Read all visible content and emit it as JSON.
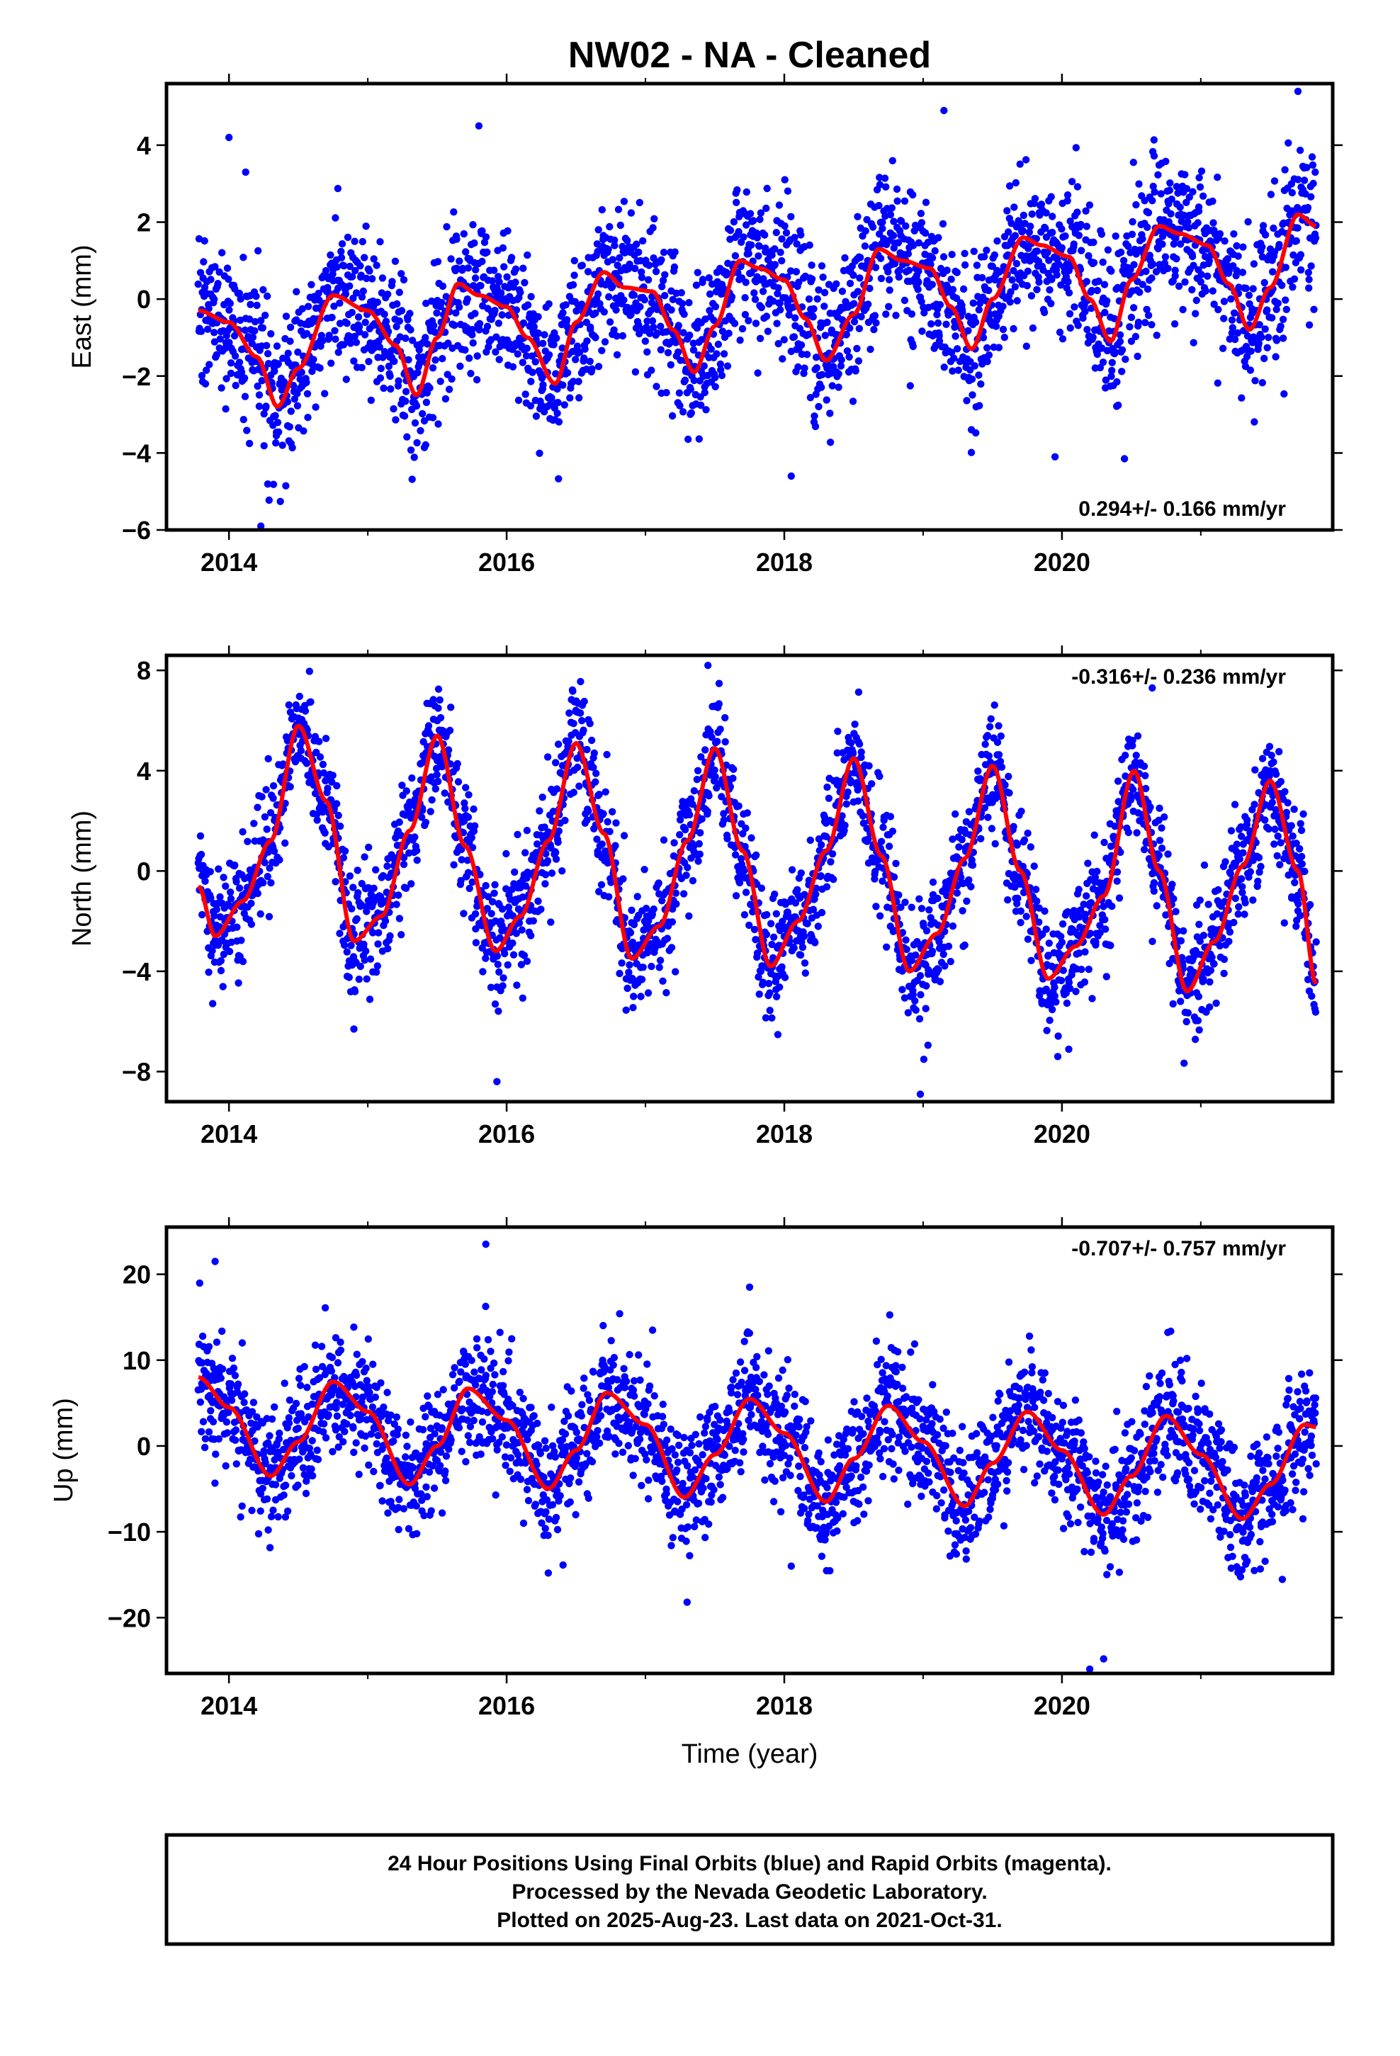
{
  "title": "NW02  - NA - Cleaned",
  "colors": {
    "points": "#0000ff",
    "fit": "#ff0000",
    "frame": "#000000"
  },
  "chart_data": [
    {
      "type": "scatter",
      "name": "east",
      "ylabel": "East (mm)",
      "xlabel": "",
      "xlim": [
        2013.55,
        2021.95
      ],
      "ylim": [
        -6,
        5.6
      ],
      "yticks": [
        -6,
        -4,
        -2,
        0,
        2,
        4
      ],
      "xticks": [
        2014,
        2016,
        2018,
        2020
      ],
      "rate_text": "0.294+/- 0.166 mm/yr",
      "rate_position": "bottom-right",
      "data_range": [
        2013.78,
        2021.83
      ],
      "fit": {
        "x": [
          2013.78,
          2014.0,
          2014.2,
          2014.35,
          2014.5,
          2014.75,
          2015.0,
          2015.2,
          2015.35,
          2015.5,
          2015.65,
          2015.8,
          2016.0,
          2016.15,
          2016.35,
          2016.5,
          2016.7,
          2016.85,
          2017.05,
          2017.2,
          2017.35,
          2017.5,
          2017.68,
          2017.82,
          2018.0,
          2018.15,
          2018.3,
          2018.5,
          2018.68,
          2018.85,
          2019.05,
          2019.2,
          2019.35,
          2019.5,
          2019.72,
          2019.85,
          2020.05,
          2020.2,
          2020.35,
          2020.5,
          2020.7,
          2020.85,
          2021.05,
          2021.2,
          2021.35,
          2021.5,
          2021.7,
          2021.83
        ],
        "y": [
          -0.3,
          -0.6,
          -1.5,
          -2.8,
          -1.8,
          0.1,
          -0.3,
          -1.2,
          -2.5,
          -1.0,
          0.4,
          0.1,
          -0.2,
          -1.0,
          -2.2,
          -0.6,
          0.7,
          0.3,
          0.2,
          -0.8,
          -1.9,
          -0.7,
          1.0,
          0.8,
          0.5,
          -0.5,
          -1.6,
          -0.4,
          1.3,
          1.0,
          0.8,
          -0.2,
          -1.3,
          0.0,
          1.6,
          1.4,
          1.1,
          0.0,
          -1.1,
          0.5,
          1.9,
          1.7,
          1.4,
          0.4,
          -0.8,
          0.3,
          2.2,
          1.9
        ]
      },
      "scatter_spread": 1.0,
      "outliers": [
        {
          "x": 2014.0,
          "y": 4.2
        },
        {
          "x": 2014.12,
          "y": 3.3
        },
        {
          "x": 2015.8,
          "y": 4.5
        },
        {
          "x": 2019.15,
          "y": 4.9
        },
        {
          "x": 2021.7,
          "y": 5.4
        },
        {
          "x": 2014.23,
          "y": -5.9
        },
        {
          "x": 2018.05,
          "y": -4.6
        },
        {
          "x": 2020.45,
          "y": -4.15
        },
        {
          "x": 2019.95,
          "y": -4.1
        }
      ]
    },
    {
      "type": "scatter",
      "name": "north",
      "ylabel": "North (mm)",
      "xlabel": "",
      "xlim": [
        2013.55,
        2021.95
      ],
      "ylim": [
        -9.2,
        8.6
      ],
      "yticks": [
        -8,
        -4,
        0,
        4,
        8
      ],
      "xticks": [
        2014,
        2016,
        2018,
        2020
      ],
      "rate_text": "-0.316+/- 0.236 mm/yr",
      "rate_position": "top-right",
      "data_range": [
        2013.78,
        2021.83
      ],
      "fit": {
        "x": [
          2013.78,
          2013.9,
          2014.1,
          2014.3,
          2014.5,
          2014.7,
          2014.9,
          2015.1,
          2015.3,
          2015.5,
          2015.7,
          2015.92,
          2016.1,
          2016.3,
          2016.5,
          2016.7,
          2016.9,
          2017.1,
          2017.3,
          2017.5,
          2017.7,
          2017.9,
          2018.1,
          2018.3,
          2018.5,
          2018.7,
          2018.9,
          2019.1,
          2019.3,
          2019.5,
          2019.7,
          2019.9,
          2020.1,
          2020.3,
          2020.52,
          2020.7,
          2020.9,
          2021.1,
          2021.3,
          2021.5,
          2021.7,
          2021.83
        ],
        "y": [
          -0.6,
          -2.6,
          -1.2,
          1.2,
          5.8,
          2.8,
          -2.8,
          -1.8,
          1.6,
          5.4,
          1.0,
          -3.2,
          -1.8,
          1.2,
          5.1,
          1.5,
          -3.5,
          -2.2,
          1.2,
          4.9,
          0.8,
          -3.8,
          -2.0,
          0.8,
          4.5,
          0.6,
          -4.0,
          -2.5,
          0.5,
          4.2,
          0.0,
          -4.3,
          -3.0,
          -1.0,
          4.0,
          0.0,
          -4.8,
          -2.8,
          0.2,
          3.6,
          0.0,
          -4.5
        ]
      },
      "scatter_spread": 1.2,
      "outliers": [
        {
          "x": 2017.45,
          "y": 8.2
        },
        {
          "x": 2020.65,
          "y": 7.3
        },
        {
          "x": 2018.98,
          "y": -8.9
        },
        {
          "x": 2015.93,
          "y": -8.4
        },
        {
          "x": 2014.9,
          "y": -6.3
        },
        {
          "x": 2019.97,
          "y": -7.4
        }
      ]
    },
    {
      "type": "scatter",
      "name": "up",
      "ylabel": "Up (mm)",
      "xlabel": "Time (year)",
      "xlim": [
        2013.55,
        2021.95
      ],
      "ylim": [
        -26.5,
        25.5
      ],
      "yticks": [
        -20,
        -10,
        0,
        10,
        20
      ],
      "xticks": [
        2014,
        2016,
        2018,
        2020
      ],
      "rate_text": "-0.707+/- 0.757 mm/yr",
      "rate_position": "top-right",
      "data_range": [
        2013.78,
        2021.83
      ],
      "fit": {
        "x": [
          2013.78,
          2014.0,
          2014.3,
          2014.5,
          2014.75,
          2015.0,
          2015.3,
          2015.5,
          2015.72,
          2016.0,
          2016.3,
          2016.5,
          2016.72,
          2017.0,
          2017.28,
          2017.5,
          2017.75,
          2018.0,
          2018.3,
          2018.5,
          2018.75,
          2019.0,
          2019.3,
          2019.5,
          2019.75,
          2020.0,
          2020.3,
          2020.5,
          2020.75,
          2021.0,
          2021.3,
          2021.5,
          2021.75,
          2021.83
        ],
        "y": [
          8.0,
          4.5,
          -3.5,
          0.5,
          7.5,
          4.0,
          -4.5,
          0.0,
          6.7,
          3.0,
          -5.0,
          -0.5,
          6.2,
          2.5,
          -6.0,
          -1.0,
          5.5,
          1.5,
          -6.5,
          -1.5,
          4.7,
          0.5,
          -7.0,
          -2.0,
          4.0,
          -0.5,
          -8.0,
          -3.5,
          3.5,
          -1.0,
          -8.5,
          -4.5,
          2.5,
          2.2
        ]
      },
      "scatter_spread": 3.6,
      "outliers": [
        {
          "x": 2015.85,
          "y": 23.5
        },
        {
          "x": 2013.9,
          "y": 21.5
        },
        {
          "x": 2017.75,
          "y": 18.5
        },
        {
          "x": 2016.3,
          "y": -14.8
        },
        {
          "x": 2020.2,
          "y": -26.0
        },
        {
          "x": 2020.3,
          "y": -24.8
        },
        {
          "x": 2017.3,
          "y": -18.2
        },
        {
          "x": 2018.05,
          "y": -14.0
        }
      ]
    }
  ],
  "caption": {
    "line1": "24 Hour Positions Using Final Orbits (blue) and Rapid Orbits (magenta).",
    "line2": "Processed by the Nevada Geodetic Laboratory.",
    "line3": "Plotted on 2025-Aug-23. Last data on 2021-Oct-31."
  }
}
